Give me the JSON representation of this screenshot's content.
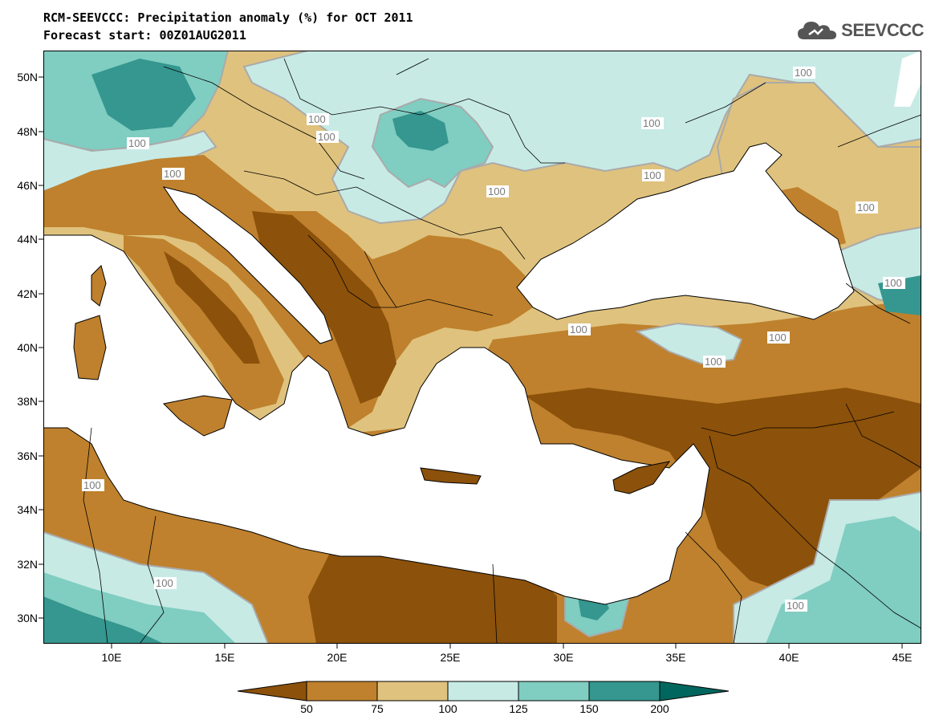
{
  "header": {
    "title_line1": "RCM-SEEVCCC: Precipitation anomaly (%) for OCT 2011",
    "title_line2": "Forecast start: 00Z01AUG2011"
  },
  "logo": {
    "text": "SEEVCCC",
    "icon": "cloud-logo-icon"
  },
  "map": {
    "lat_labels": [
      "50N",
      "48N",
      "46N",
      "44N",
      "42N",
      "40N",
      "38N",
      "36N",
      "34N",
      "32N",
      "30N"
    ],
    "lon_labels": [
      "10E",
      "15E",
      "20E",
      "25E",
      "30E",
      "35E",
      "40E",
      "45E"
    ],
    "contour_label": "100",
    "colors": {
      "below_50": "#8c510a",
      "50_75": "#bf812d",
      "75_100": "#dfc27d",
      "100_125": "#c7eae5",
      "125_150": "#80cdc1",
      "150_200": "#35978f",
      "above_200": "#01665e",
      "contour": "#aaaaaa",
      "land_mask": "#ffffff"
    }
  },
  "colorbar": {
    "tick_labels": [
      "50",
      "75",
      "100",
      "125",
      "150",
      "200"
    ],
    "colors": [
      "#8c510a",
      "#bf812d",
      "#dfc27d",
      "#c7eae5",
      "#80cdc1",
      "#35978f",
      "#01665e"
    ]
  }
}
